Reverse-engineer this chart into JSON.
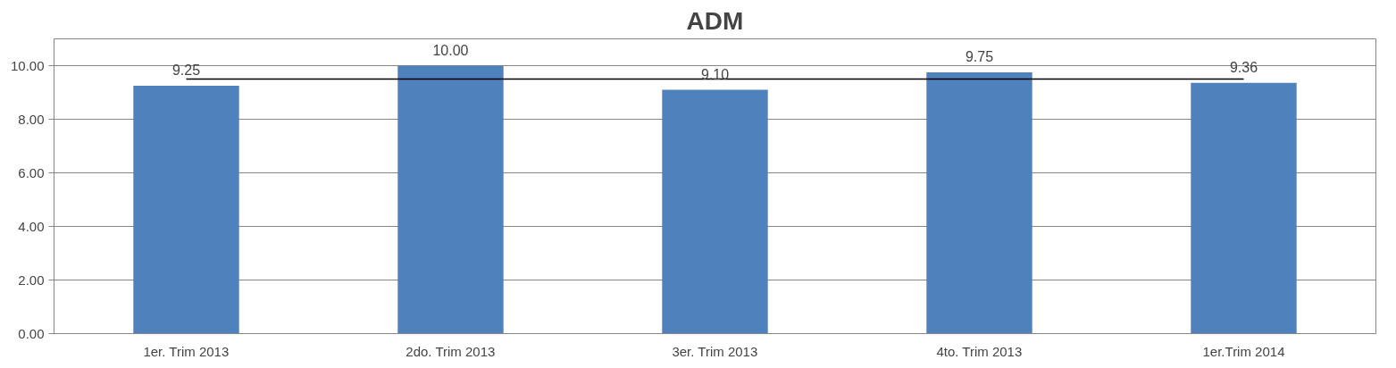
{
  "chart_data": {
    "type": "bar",
    "title": "ADM",
    "categories": [
      "1er. Trim 2013",
      "2do. Trim 2013",
      "3er. Trim 2013",
      "4to. Trim 2013",
      "1er.Trim 2014"
    ],
    "series": [
      {
        "color": "#4f81bd",
        "values": [
          9.25,
          10.0,
          9.1,
          9.75,
          9.36
        ],
        "value_labels": [
          "9.25",
          "10.00",
          "9.10",
          "9.75",
          "9.36"
        ]
      },
      {
        "type": "line",
        "color": "#000000",
        "values": [
          9.5,
          9.5,
          9.5,
          9.5,
          9.5
        ]
      }
    ],
    "ylim": [
      0,
      11
    ],
    "yticks": [
      {
        "value": 0,
        "label": "0.00"
      },
      {
        "value": 2,
        "label": "2.00"
      },
      {
        "value": 4,
        "label": "4.00"
      },
      {
        "value": 6,
        "label": "6.00"
      },
      {
        "value": 8,
        "label": "8.00"
      },
      {
        "value": 10,
        "label": "10.00"
      }
    ],
    "grid": "y",
    "marker": "none",
    "line_style": "solid"
  }
}
